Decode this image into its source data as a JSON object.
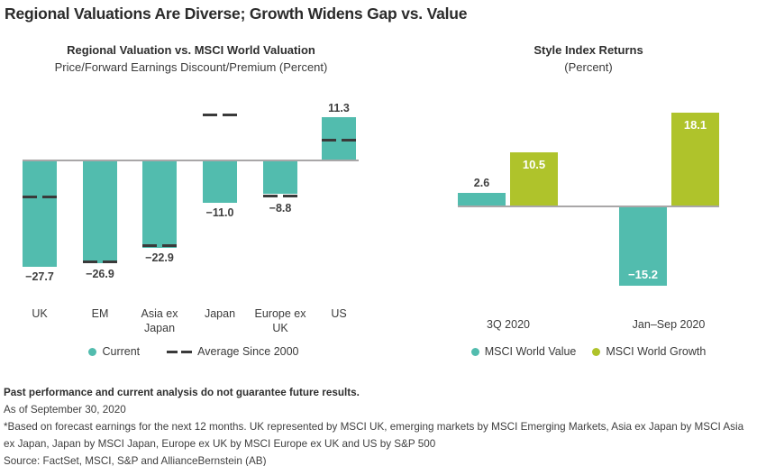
{
  "title": "Regional Valuations Are Diverse; Growth Widens Gap vs. Value",
  "colors": {
    "teal": "#52BCAE",
    "green": "#AFC32B",
    "dark_text": "#3B3B3B",
    "title_text": "#2B2B2B",
    "axis_line": "#A9A7A8",
    "white_label": "#FFFFFF"
  },
  "chart_data": [
    {
      "type": "bar",
      "title": "Regional Valuation vs. MSCI World Valuation",
      "subtitle": "Price/Forward Earnings Discount/Premium (Percent)",
      "categories": [
        "UK",
        "EM",
        "Asia ex Japan",
        "Japan",
        "Europe ex UK",
        "US"
      ],
      "series": [
        {
          "name": "Current",
          "values": [
            -27.7,
            -26.9,
            -22.9,
            -11.0,
            -8.8,
            11.3
          ]
        },
        {
          "name": "Average Since 2000",
          "values": [
            -9.5,
            -26.5,
            -22.3,
            11.8,
            -9.3,
            5.2
          ]
        }
      ],
      "data_labels": [
        "−27.7",
        "−26.9",
        "−22.9",
        "−11.0",
        "−8.8",
        "11.3"
      ],
      "ylim": [
        -33,
        16
      ],
      "grid": false,
      "legend_position": "bottom"
    },
    {
      "type": "bar",
      "title": "Style Index Returns",
      "subtitle": "(Percent)",
      "categories": [
        "3Q 2020",
        "Jan–Sep 2020"
      ],
      "series": [
        {
          "name": "MSCI World Value",
          "values": [
            2.6,
            -15.2
          ]
        },
        {
          "name": "MSCI World Growth",
          "values": [
            10.5,
            18.1
          ]
        }
      ],
      "data_labels": [
        [
          "2.6",
          "−15.2"
        ],
        [
          "10.5",
          "18.1"
        ]
      ],
      "ylim": [
        -18,
        21
      ],
      "grid": false,
      "legend_position": "bottom"
    }
  ],
  "footnotes": {
    "disclaimer": "Past performance and current analysis do not guarantee future results.",
    "as_of": "As of September 30, 2020",
    "note": "*Based on forecast earnings for the next 12 months. UK represented by MSCI UK, emerging markets by MSCI Emerging Markets, Asia ex Japan by MSCI Asia ex Japan, Japan by MSCI Japan, Europe ex UK by MSCI Europe ex UK and US by S&P 500",
    "source": "Source: FactSet, MSCI, S&P and AllianceBernstein (AB)"
  }
}
